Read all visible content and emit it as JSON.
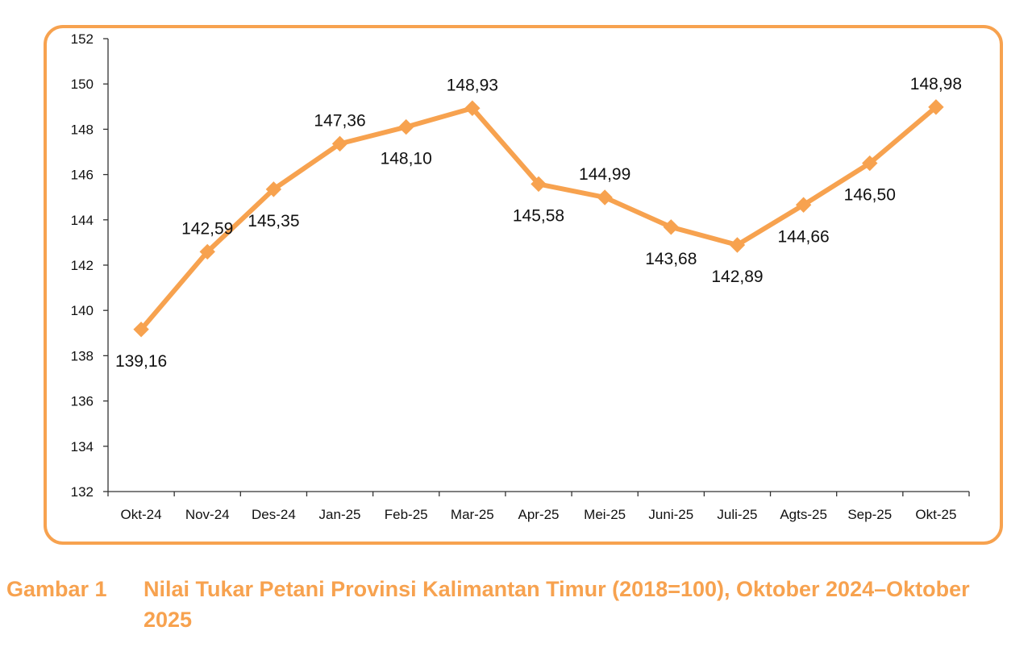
{
  "figure": {
    "caption_number": "Gambar 1",
    "caption_text": "Nilai Tukar Petani Provinsi Kalimantan Timur (2018=100), Oktober 2024–Oktober 2025"
  },
  "colors": {
    "accent": "#f7a24f",
    "axis": "#333333"
  },
  "chart_data": {
    "type": "line",
    "title": "",
    "xlabel": "",
    "ylabel": "",
    "ylim": [
      132,
      152
    ],
    "ytick_step": 2,
    "grid": false,
    "legend": "none",
    "categories": [
      "Okt-24",
      "Nov-24",
      "Des-24",
      "Jan-25",
      "Feb-25",
      "Mar-25",
      "Apr-25",
      "Mei-25",
      "Juni-25",
      "Juli-25",
      "Agts-25",
      "Sep-25",
      "Okt-25"
    ],
    "values": [
      139.16,
      142.59,
      145.35,
      147.36,
      148.1,
      148.93,
      145.58,
      144.99,
      143.68,
      142.89,
      144.66,
      146.5,
      148.98
    ],
    "data_labels": [
      "139,16",
      "142,59",
      "145,35",
      "147,36",
      "148,10",
      "148,93",
      "145,58",
      "144,99",
      "143,68",
      "142,89",
      "144,66",
      "146,50",
      "148,98"
    ],
    "label_positions": [
      "below",
      "above",
      "below",
      "above",
      "below",
      "above",
      "below",
      "above",
      "below",
      "below",
      "below",
      "below",
      "above"
    ],
    "marker": "diamond"
  }
}
